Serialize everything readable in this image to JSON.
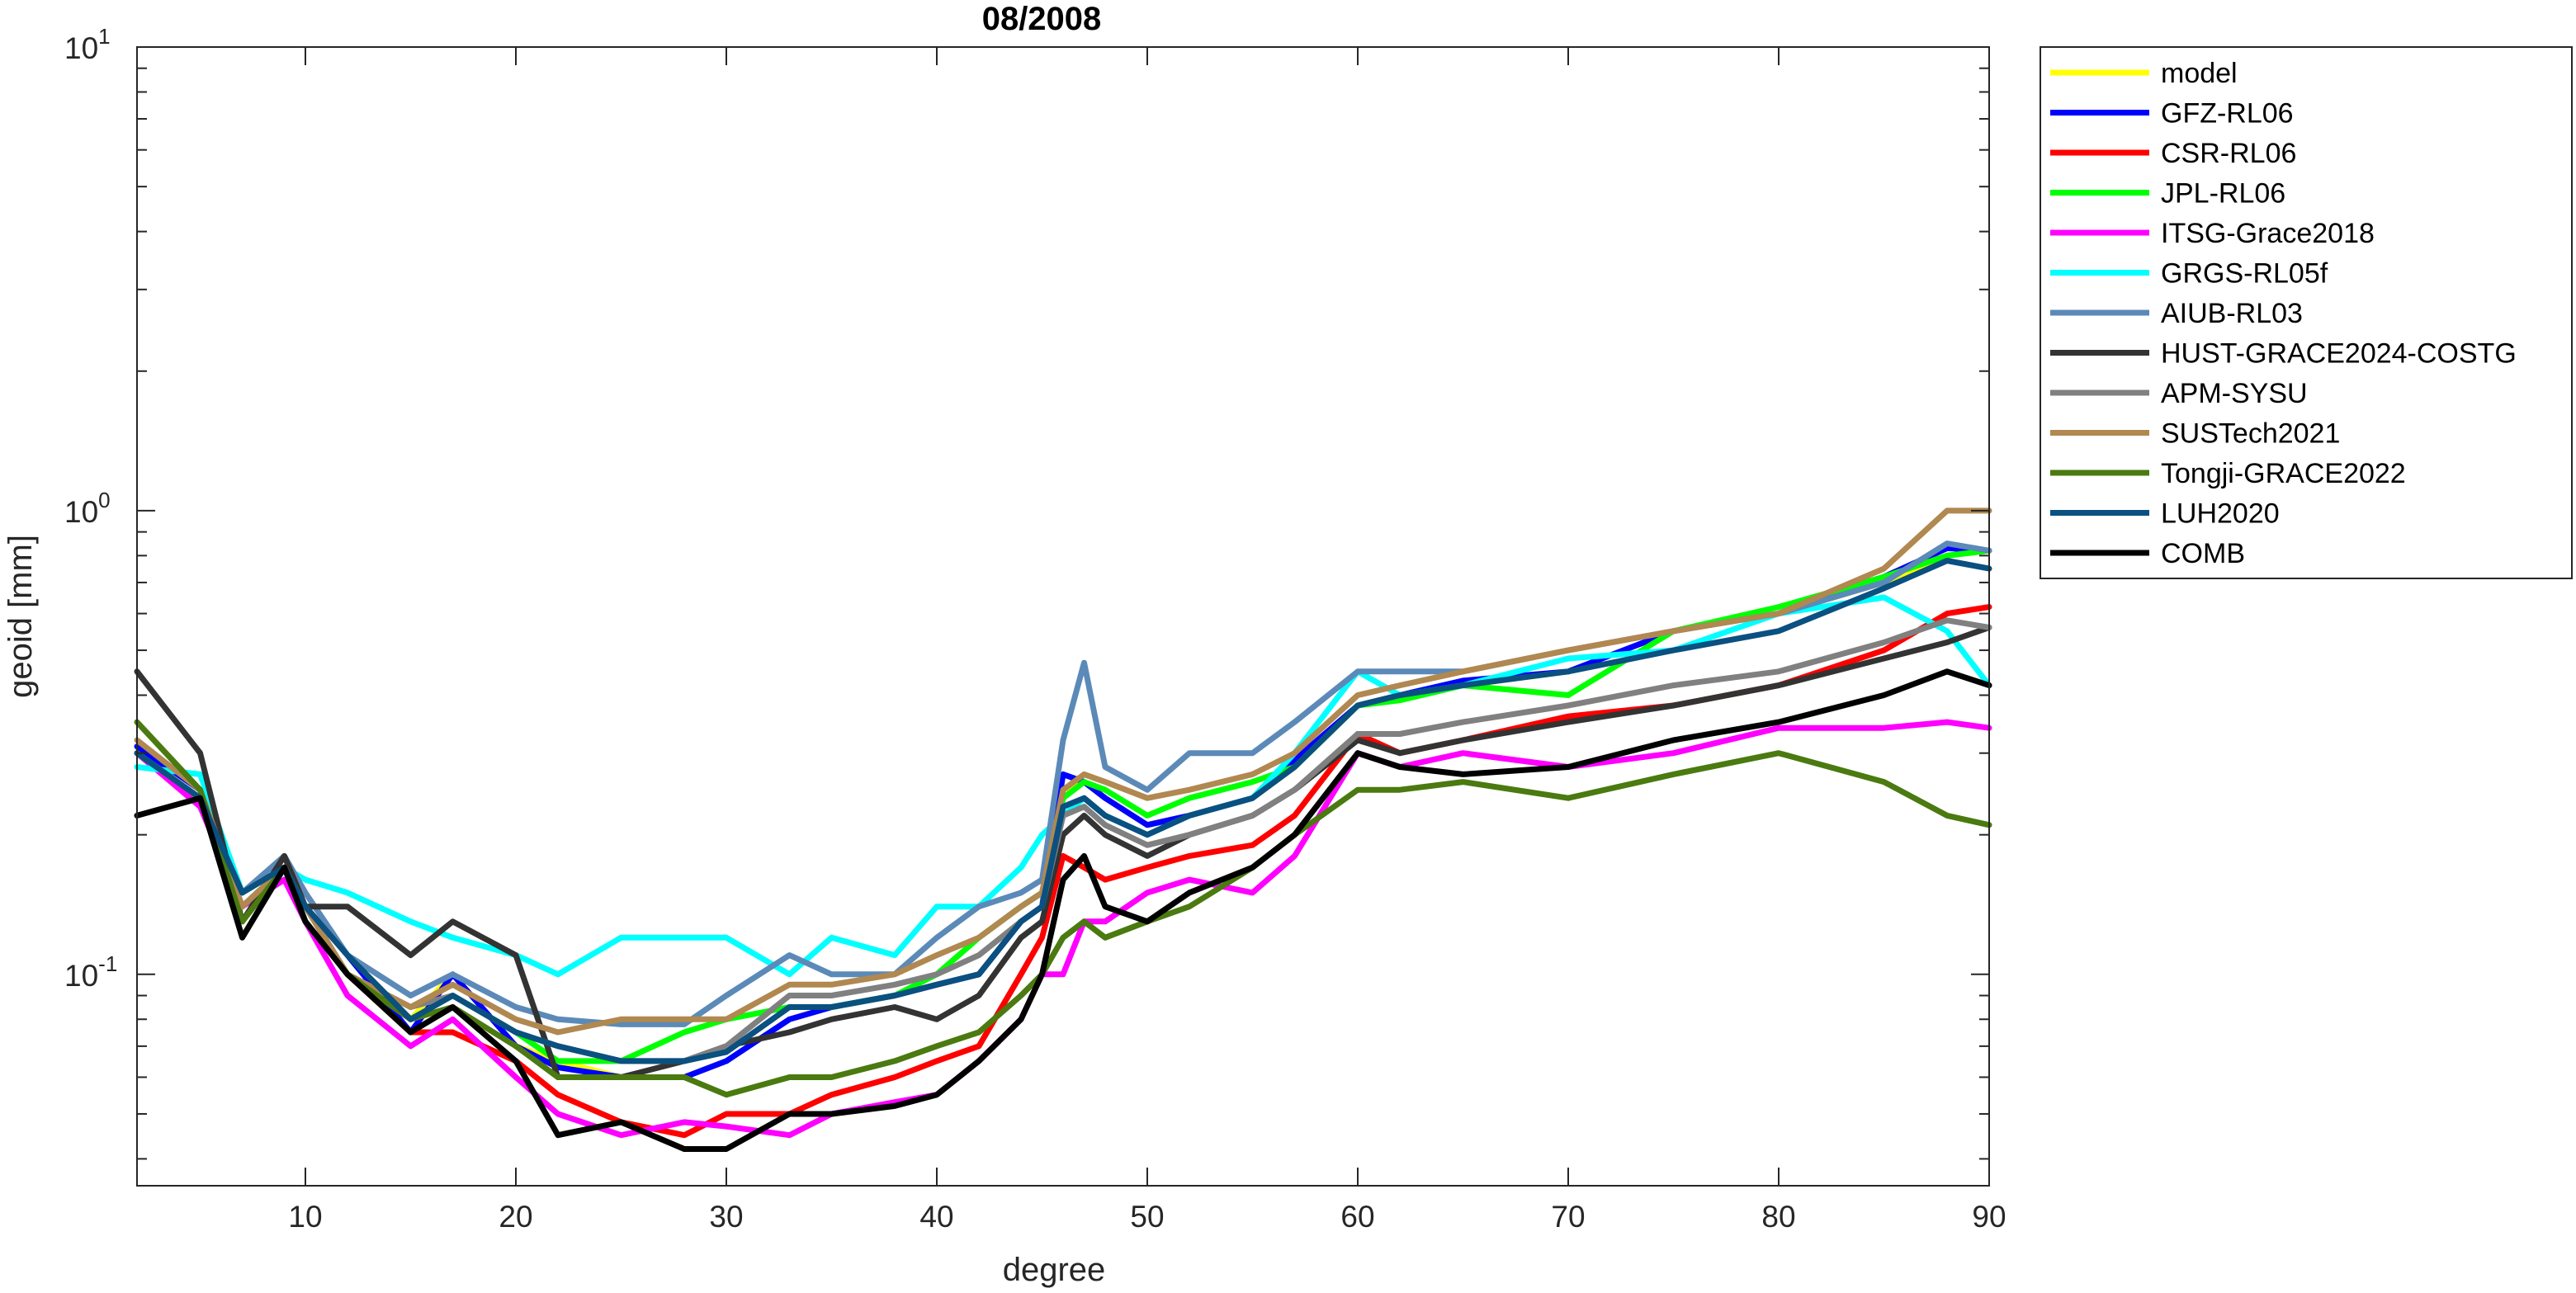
{
  "chart_data": {
    "type": "line",
    "title": "08/2008",
    "xlabel": "degree",
    "ylabel": "geoid [mm]",
    "xlim": [
      2,
      90
    ],
    "ylim": [
      0.035,
      10
    ],
    "yscale": "log",
    "grid": false,
    "legend_position": "outside-right",
    "x_ticks": [
      10,
      20,
      30,
      40,
      50,
      60,
      70,
      80,
      90
    ],
    "x_tick_labels": [
      "10",
      "20",
      "30",
      "40",
      "50",
      "60",
      "70",
      "80",
      "90"
    ],
    "y_ticks": [
      0.1,
      1,
      10
    ],
    "y_tick_labels": [
      {
        "base": "10",
        "exp": "-1"
      },
      {
        "base": "10",
        "exp": "0"
      },
      {
        "base": "10",
        "exp": "1"
      }
    ],
    "x": [
      2,
      5,
      7,
      9,
      10,
      12,
      15,
      17,
      20,
      22,
      25,
      28,
      30,
      33,
      35,
      38,
      40,
      42,
      44,
      45,
      46,
      47,
      48,
      50,
      52,
      55,
      57,
      60,
      62,
      65,
      70,
      75,
      80,
      85,
      88,
      90
    ],
    "series": [
      {
        "name": "model",
        "color": "#ffff00",
        "values": [
          0.3,
          0.24,
          0.14,
          0.17,
          0.14,
          0.11,
          0.08,
          0.1,
          0.07,
          0.065,
          0.06,
          0.06,
          0.065,
          0.08,
          0.085,
          0.09,
          0.095,
          0.1,
          0.13,
          0.14,
          0.25,
          0.26,
          0.24,
          0.21,
          0.22,
          0.24,
          0.28,
          0.38,
          0.4,
          0.42,
          0.45,
          0.55,
          0.6,
          0.7,
          0.8,
          0.82
        ]
      },
      {
        "name": "GFZ-RL06",
        "color": "#0000ff",
        "values": [
          0.31,
          0.25,
          0.14,
          0.17,
          0.14,
          0.11,
          0.075,
          0.1,
          0.07,
          0.063,
          0.06,
          0.06,
          0.065,
          0.08,
          0.085,
          0.09,
          0.095,
          0.1,
          0.13,
          0.14,
          0.27,
          0.26,
          0.24,
          0.21,
          0.22,
          0.24,
          0.29,
          0.38,
          0.4,
          0.43,
          0.45,
          0.55,
          0.6,
          0.72,
          0.83,
          0.82
        ]
      },
      {
        "name": "CSR-RL06",
        "color": "#ff0000",
        "values": [
          0.3,
          0.24,
          0.14,
          0.17,
          0.14,
          0.1,
          0.075,
          0.075,
          0.065,
          0.055,
          0.048,
          0.045,
          0.05,
          0.05,
          0.055,
          0.06,
          0.065,
          0.07,
          0.1,
          0.12,
          0.18,
          0.17,
          0.16,
          0.17,
          0.18,
          0.19,
          0.22,
          0.33,
          0.3,
          0.32,
          0.36,
          0.38,
          0.42,
          0.5,
          0.6,
          0.62
        ]
      },
      {
        "name": "JPL-RL06",
        "color": "#00ff00",
        "values": [
          0.3,
          0.24,
          0.14,
          0.17,
          0.14,
          0.1,
          0.08,
          0.09,
          0.075,
          0.065,
          0.065,
          0.075,
          0.08,
          0.085,
          0.085,
          0.09,
          0.1,
          0.12,
          0.14,
          0.15,
          0.24,
          0.26,
          0.25,
          0.22,
          0.24,
          0.26,
          0.28,
          0.38,
          0.39,
          0.42,
          0.4,
          0.55,
          0.62,
          0.72,
          0.8,
          0.82
        ]
      },
      {
        "name": "ITSG-Grace2018",
        "color": "#ff00ff",
        "values": [
          0.3,
          0.23,
          0.14,
          0.16,
          0.13,
          0.09,
          0.07,
          0.08,
          0.06,
          0.05,
          0.045,
          0.048,
          0.047,
          0.045,
          0.05,
          0.053,
          0.055,
          0.065,
          0.08,
          0.1,
          0.1,
          0.13,
          0.13,
          0.15,
          0.16,
          0.15,
          0.18,
          0.3,
          0.28,
          0.3,
          0.28,
          0.3,
          0.34,
          0.34,
          0.35,
          0.34
        ]
      },
      {
        "name": "GRGS-RL05f",
        "color": "#00ffff",
        "values": [
          0.28,
          0.27,
          0.15,
          0.17,
          0.16,
          0.15,
          0.13,
          0.12,
          0.11,
          0.1,
          0.12,
          0.12,
          0.12,
          0.1,
          0.12,
          0.11,
          0.14,
          0.14,
          0.17,
          0.2,
          0.22,
          0.24,
          0.22,
          0.2,
          0.22,
          0.24,
          0.3,
          0.45,
          0.4,
          0.42,
          0.48,
          0.5,
          0.6,
          0.65,
          0.55,
          0.42
        ]
      },
      {
        "name": "AIUB-RL03",
        "color": "#5b8ab8",
        "values": [
          0.3,
          0.24,
          0.15,
          0.18,
          0.15,
          0.11,
          0.09,
          0.1,
          0.085,
          0.08,
          0.078,
          0.078,
          0.09,
          0.11,
          0.1,
          0.1,
          0.12,
          0.14,
          0.15,
          0.16,
          0.32,
          0.47,
          0.28,
          0.25,
          0.3,
          0.3,
          0.35,
          0.45,
          0.45,
          0.45,
          0.5,
          0.55,
          0.6,
          0.7,
          0.85,
          0.82
        ]
      },
      {
        "name": "HUST-GRACE2024-COSTG",
        "color": "#333333",
        "values": [
          0.45,
          0.3,
          0.13,
          0.18,
          0.14,
          0.14,
          0.11,
          0.13,
          0.11,
          0.06,
          0.06,
          0.065,
          0.07,
          0.075,
          0.08,
          0.085,
          0.08,
          0.09,
          0.12,
          0.13,
          0.2,
          0.22,
          0.2,
          0.18,
          0.2,
          0.22,
          0.25,
          0.32,
          0.3,
          0.32,
          0.35,
          0.38,
          0.42,
          0.48,
          0.52,
          0.56
        ]
      },
      {
        "name": "APM-SYSU",
        "color": "#808080",
        "values": [
          0.3,
          0.24,
          0.14,
          0.17,
          0.14,
          0.1,
          0.085,
          0.09,
          0.075,
          0.07,
          0.065,
          0.065,
          0.07,
          0.09,
          0.09,
          0.095,
          0.1,
          0.11,
          0.13,
          0.14,
          0.22,
          0.23,
          0.21,
          0.19,
          0.2,
          0.22,
          0.25,
          0.33,
          0.33,
          0.35,
          0.38,
          0.42,
          0.45,
          0.52,
          0.58,
          0.56
        ]
      },
      {
        "name": "SUSTech2021",
        "color": "#b08850",
        "values": [
          0.32,
          0.25,
          0.14,
          0.17,
          0.14,
          0.1,
          0.085,
          0.095,
          0.08,
          0.075,
          0.08,
          0.08,
          0.08,
          0.095,
          0.095,
          0.1,
          0.11,
          0.12,
          0.14,
          0.15,
          0.25,
          0.27,
          0.26,
          0.24,
          0.25,
          0.27,
          0.3,
          0.4,
          0.42,
          0.45,
          0.5,
          0.55,
          0.6,
          0.75,
          1.0,
          1.0
        ]
      },
      {
        "name": "Tongji-GRACE2022",
        "color": "#4a7a10",
        "values": [
          0.35,
          0.25,
          0.13,
          0.17,
          0.13,
          0.1,
          0.08,
          0.085,
          0.07,
          0.06,
          0.06,
          0.06,
          0.055,
          0.06,
          0.06,
          0.065,
          0.07,
          0.075,
          0.09,
          0.1,
          0.12,
          0.13,
          0.12,
          0.13,
          0.14,
          0.17,
          0.2,
          0.25,
          0.25,
          0.26,
          0.24,
          0.27,
          0.3,
          0.26,
          0.22,
          0.21
        ]
      },
      {
        "name": "LUH2020",
        "color": "#0a5080",
        "values": [
          0.3,
          0.24,
          0.15,
          0.17,
          0.14,
          0.11,
          0.08,
          0.09,
          0.075,
          0.07,
          0.065,
          0.065,
          0.068,
          0.085,
          0.085,
          0.09,
          0.095,
          0.1,
          0.13,
          0.14,
          0.23,
          0.24,
          0.22,
          0.2,
          0.22,
          0.24,
          0.28,
          0.38,
          0.4,
          0.42,
          0.45,
          0.5,
          0.55,
          0.68,
          0.78,
          0.75
        ]
      },
      {
        "name": "COMB",
        "color": "#000000",
        "values": [
          0.22,
          0.24,
          0.12,
          0.17,
          0.13,
          0.1,
          0.075,
          0.085,
          0.065,
          0.045,
          0.048,
          0.042,
          0.042,
          0.05,
          0.05,
          0.052,
          0.055,
          0.065,
          0.08,
          0.1,
          0.16,
          0.18,
          0.14,
          0.13,
          0.15,
          0.17,
          0.2,
          0.3,
          0.28,
          0.27,
          0.28,
          0.32,
          0.35,
          0.4,
          0.45,
          0.42
        ]
      }
    ]
  }
}
